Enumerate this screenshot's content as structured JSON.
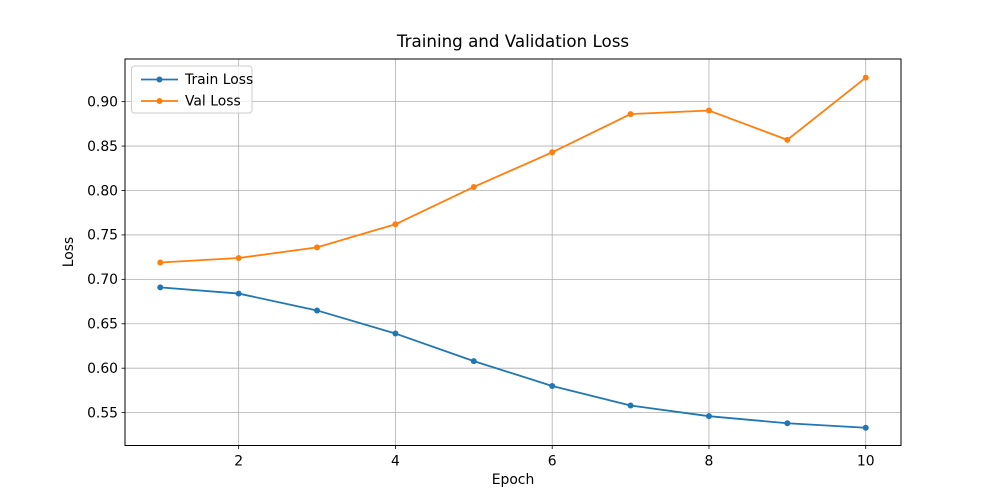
{
  "chart_data": {
    "type": "line",
    "title": "Training and Validation Loss",
    "xlabel": "Epoch",
    "ylabel": "Loss",
    "x": [
      1,
      2,
      3,
      4,
      5,
      6,
      7,
      8,
      9,
      10
    ],
    "series": [
      {
        "name": "Train Loss",
        "color": "#1f77b4",
        "marker": "o",
        "values": [
          0.691,
          0.684,
          0.665,
          0.639,
          0.608,
          0.58,
          0.558,
          0.546,
          0.538,
          0.533
        ]
      },
      {
        "name": "Val Loss",
        "color": "#ff7f0e",
        "marker": "o",
        "values": [
          0.719,
          0.724,
          0.736,
          0.762,
          0.804,
          0.843,
          0.886,
          0.89,
          0.857,
          0.927
        ]
      }
    ],
    "xlim": [
      0.55,
      10.45
    ],
    "ylim": [
      0.513,
      0.948
    ],
    "xticks": [
      2,
      4,
      6,
      8,
      10
    ],
    "xtick_labels": [
      "2",
      "4",
      "6",
      "8",
      "10"
    ],
    "yticks": [
      0.55,
      0.6,
      0.65,
      0.7,
      0.75,
      0.8,
      0.85,
      0.9
    ],
    "ytick_labels": [
      "0.55",
      "0.60",
      "0.65",
      "0.70",
      "0.75",
      "0.80",
      "0.85",
      "0.90"
    ],
    "grid": true,
    "grid_color": "#b0b0b0",
    "spine_color": "#000000",
    "background": "#ffffff",
    "legend_position": "upper left"
  }
}
